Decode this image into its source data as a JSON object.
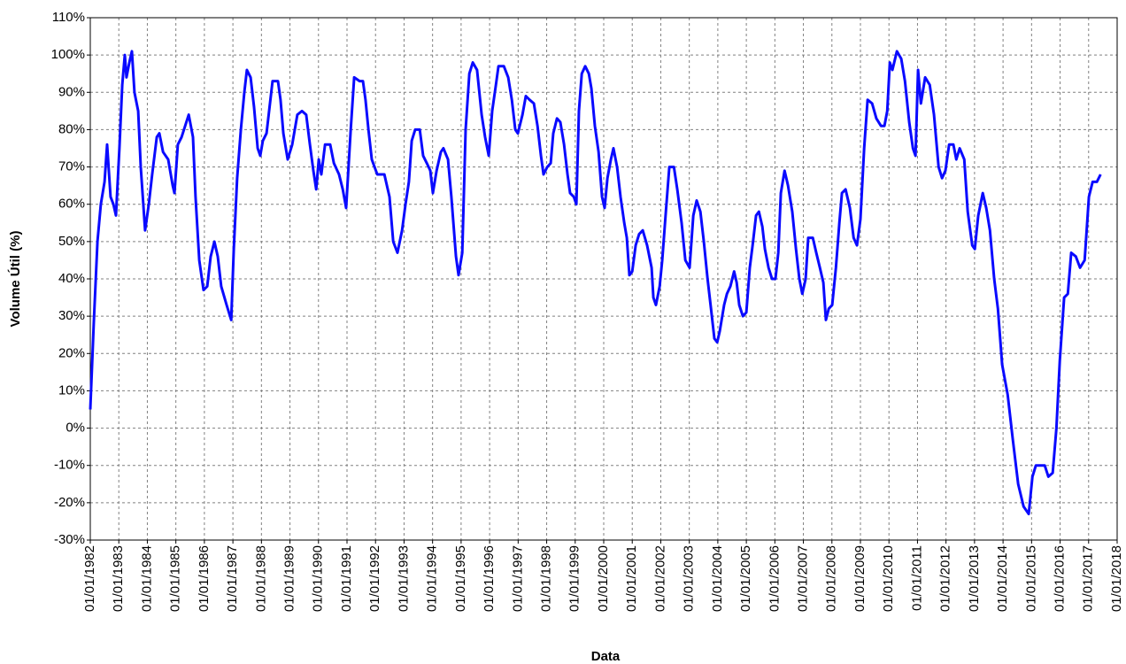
{
  "chart_data": {
    "type": "line",
    "xlabel": "Data",
    "ylabel": "Volume Útil (%)",
    "color": "#0a0aff",
    "grid": true,
    "xlim": [
      1982,
      2018
    ],
    "ylim": [
      -30,
      110
    ],
    "xticks": [
      {
        "value": 1982,
        "label": "01/01/1982"
      },
      {
        "value": 1983,
        "label": "01/01/1983"
      },
      {
        "value": 1984,
        "label": "01/01/1984"
      },
      {
        "value": 1985,
        "label": "01/01/1985"
      },
      {
        "value": 1986,
        "label": "01/01/1986"
      },
      {
        "value": 1987,
        "label": "01/01/1987"
      },
      {
        "value": 1988,
        "label": "01/01/1988"
      },
      {
        "value": 1989,
        "label": "01/01/1989"
      },
      {
        "value": 1990,
        "label": "01/01/1990"
      },
      {
        "value": 1991,
        "label": "01/01/1991"
      },
      {
        "value": 1992,
        "label": "01/01/1992"
      },
      {
        "value": 1993,
        "label": "01/01/1993"
      },
      {
        "value": 1994,
        "label": "01/01/1994"
      },
      {
        "value": 1995,
        "label": "01/01/1995"
      },
      {
        "value": 1996,
        "label": "01/01/1996"
      },
      {
        "value": 1997,
        "label": "01/01/1997"
      },
      {
        "value": 1998,
        "label": "01/01/1998"
      },
      {
        "value": 1999,
        "label": "01/01/1999"
      },
      {
        "value": 2000,
        "label": "01/01/2000"
      },
      {
        "value": 2001,
        "label": "01/01/2001"
      },
      {
        "value": 2002,
        "label": "01/01/2002"
      },
      {
        "value": 2003,
        "label": "01/01/2003"
      },
      {
        "value": 2004,
        "label": "01/01/2004"
      },
      {
        "value": 2005,
        "label": "01/01/2005"
      },
      {
        "value": 2006,
        "label": "01/01/2006"
      },
      {
        "value": 2007,
        "label": "01/01/2007"
      },
      {
        "value": 2008,
        "label": "01/01/2008"
      },
      {
        "value": 2009,
        "label": "01/01/2009"
      },
      {
        "value": 2010,
        "label": "01/01/2010"
      },
      {
        "value": 2011,
        "label": "01/01/2011"
      },
      {
        "value": 2012,
        "label": "01/01/2012"
      },
      {
        "value": 2013,
        "label": "01/01/2013"
      },
      {
        "value": 2014,
        "label": "01/01/2014"
      },
      {
        "value": 2015,
        "label": "01/01/2015"
      },
      {
        "value": 2016,
        "label": "01/01/2016"
      },
      {
        "value": 2017,
        "label": "01/01/2017"
      },
      {
        "value": 2018,
        "label": "01/01/2018"
      }
    ],
    "yticks": [
      {
        "value": -30,
        "label": "-30%"
      },
      {
        "value": -20,
        "label": "-20%"
      },
      {
        "value": -10,
        "label": "-10%"
      },
      {
        "value": 0,
        "label": "0%"
      },
      {
        "value": 10,
        "label": "10%"
      },
      {
        "value": 20,
        "label": "20%"
      },
      {
        "value": 30,
        "label": "30%"
      },
      {
        "value": 40,
        "label": "40%"
      },
      {
        "value": 50,
        "label": "50%"
      },
      {
        "value": 60,
        "label": "60%"
      },
      {
        "value": 70,
        "label": "70%"
      },
      {
        "value": 80,
        "label": "80%"
      },
      {
        "value": 90,
        "label": "90%"
      },
      {
        "value": 100,
        "label": "100%"
      },
      {
        "value": 110,
        "label": "110%"
      }
    ],
    "x": [
      1982.0,
      1982.12,
      1982.25,
      1982.37,
      1982.5,
      1982.59,
      1982.71,
      1982.81,
      1982.9,
      1983.02,
      1983.12,
      1983.21,
      1983.27,
      1983.37,
      1983.46,
      1983.55,
      1983.68,
      1983.77,
      1983.92,
      1984.05,
      1984.17,
      1984.33,
      1984.42,
      1984.55,
      1984.73,
      1984.89,
      1984.95,
      1985.07,
      1985.2,
      1985.45,
      1985.6,
      1985.69,
      1985.82,
      1985.97,
      1986.1,
      1986.22,
      1986.35,
      1986.47,
      1986.59,
      1986.78,
      1986.94,
      1987.03,
      1987.15,
      1987.28,
      1987.4,
      1987.49,
      1987.62,
      1987.74,
      1987.87,
      1987.96,
      1988.05,
      1988.18,
      1988.39,
      1988.58,
      1988.67,
      1988.77,
      1988.92,
      1989.08,
      1989.26,
      1989.42,
      1989.57,
      1989.7,
      1989.82,
      1989.92,
      1990.01,
      1990.1,
      1990.23,
      1990.41,
      1990.54,
      1990.72,
      1990.85,
      1990.97,
      1991.13,
      1991.25,
      1991.44,
      1991.56,
      1991.65,
      1991.75,
      1991.87,
      1992.06,
      1992.31,
      1992.49,
      1992.62,
      1992.77,
      1992.93,
      1993.05,
      1993.17,
      1993.27,
      1993.39,
      1993.55,
      1993.67,
      1993.8,
      1993.92,
      1994.01,
      1994.14,
      1994.29,
      1994.38,
      1994.54,
      1994.66,
      1994.82,
      1994.91,
      1995.04,
      1995.16,
      1995.29,
      1995.41,
      1995.56,
      1995.72,
      1995.84,
      1995.97,
      1996.09,
      1996.22,
      1996.31,
      1996.5,
      1996.65,
      1996.78,
      1996.9,
      1996.99,
      1997.15,
      1997.27,
      1997.4,
      1997.55,
      1997.68,
      1997.8,
      1997.89,
      1998.02,
      1998.14,
      1998.23,
      1998.36,
      1998.48,
      1998.61,
      1998.73,
      1998.82,
      1998.95,
      1999.04,
      1999.13,
      1999.23,
      1999.35,
      1999.48,
      1999.57,
      1999.69,
      1999.82,
      1999.94,
      2000.03,
      2000.13,
      2000.25,
      2000.34,
      2000.47,
      2000.59,
      2000.72,
      2000.81,
      2000.9,
      2001.0,
      2001.12,
      2001.24,
      2001.37,
      2001.52,
      2001.68,
      2001.74,
      2001.83,
      2001.96,
      2002.05,
      2002.18,
      2002.3,
      2002.46,
      2002.58,
      2002.73,
      2002.86,
      2003.01,
      2003.14,
      2003.26,
      2003.39,
      2003.51,
      2003.64,
      2003.76,
      2003.88,
      2003.98,
      2004.07,
      2004.22,
      2004.32,
      2004.44,
      2004.57,
      2004.66,
      2004.75,
      2004.88,
      2005.0,
      2005.12,
      2005.22,
      2005.34,
      2005.44,
      2005.56,
      2005.65,
      2005.78,
      2005.9,
      2006.02,
      2006.12,
      2006.21,
      2006.34,
      2006.46,
      2006.61,
      2006.74,
      2006.86,
      2006.96,
      2007.08,
      2007.17,
      2007.33,
      2007.45,
      2007.58,
      2007.7,
      2007.79,
      2007.89,
      2008.01,
      2008.14,
      2008.26,
      2008.35,
      2008.48,
      2008.63,
      2008.76,
      2008.88,
      2009.0,
      2009.13,
      2009.25,
      2009.41,
      2009.56,
      2009.72,
      2009.84,
      2009.94,
      2010.03,
      2010.12,
      2010.28,
      2010.43,
      2010.56,
      2010.71,
      2010.84,
      2010.93,
      2011.02,
      2011.12,
      2011.27,
      2011.43,
      2011.58,
      2011.74,
      2011.86,
      2011.98,
      2012.11,
      2012.26,
      2012.36,
      2012.48,
      2012.64,
      2012.76,
      2012.92,
      2013.01,
      2013.13,
      2013.29,
      2013.41,
      2013.54,
      2013.69,
      2013.82,
      2013.97,
      2014.16,
      2014.34,
      2014.53,
      2014.72,
      2014.9,
      2015.03,
      2015.15,
      2015.46,
      2015.59,
      2015.74,
      2015.87,
      2015.99,
      2016.14,
      2016.27,
      2016.39,
      2016.55,
      2016.7,
      2016.86,
      2017.01,
      2017.14,
      2017.29,
      2017.42
    ],
    "values": [
      5,
      28,
      50,
      60,
      66,
      76,
      62,
      60,
      57,
      75,
      92,
      100,
      94,
      98,
      101,
      90,
      85,
      70,
      53,
      60,
      68,
      78,
      79,
      74,
      72,
      65,
      63,
      76,
      78,
      84,
      78,
      62,
      45,
      37,
      38,
      46,
      50,
      46,
      38,
      33,
      29,
      48,
      67,
      80,
      90,
      96,
      94,
      86,
      75,
      73,
      77,
      79,
      93,
      93,
      88,
      79,
      72,
      76,
      84,
      85,
      84,
      76,
      69,
      64,
      72,
      68,
      76,
      76,
      71,
      68,
      64,
      59,
      80,
      94,
      93,
      93,
      88,
      80,
      72,
      68,
      68,
      62,
      50,
      47,
      53,
      60,
      66,
      77,
      80,
      80,
      73,
      71,
      69,
      63,
      69,
      74,
      75,
      72,
      62,
      46,
      41,
      47,
      80,
      95,
      98,
      96,
      84,
      78,
      73,
      85,
      92,
      97,
      97,
      94,
      88,
      80,
      79,
      84,
      89,
      88,
      87,
      81,
      73,
      68,
      70,
      71,
      79,
      83,
      82,
      76,
      68,
      63,
      62,
      60,
      85,
      95,
      97,
      95,
      91,
      81,
      74,
      62,
      59,
      67,
      72,
      75,
      70,
      62,
      55,
      51,
      41,
      42,
      49,
      52,
      53,
      49,
      43,
      35,
      33,
      38,
      45,
      58,
      70,
      70,
      64,
      55,
      45,
      43,
      57,
      61,
      58,
      50,
      40,
      32,
      24,
      23,
      26,
      33,
      36,
      38,
      42,
      39,
      33,
      30,
      31,
      43,
      49,
      57,
      58,
      54,
      48,
      43,
      40,
      40,
      47,
      63,
      69,
      65,
      58,
      48,
      40,
      36,
      40,
      51,
      51,
      47,
      43,
      39,
      29,
      32,
      33,
      43,
      55,
      63,
      64,
      59,
      51,
      49,
      56,
      75,
      88,
      87,
      83,
      81,
      81,
      85,
      98,
      96,
      101,
      99,
      93,
      82,
      75,
      73,
      96,
      87,
      94,
      92,
      84,
      70,
      67,
      69,
      76,
      76,
      72,
      75,
      72,
      58,
      49,
      48,
      57,
      63,
      59,
      53,
      40,
      32,
      17,
      9,
      -3,
      -15,
      -21,
      -23,
      -13,
      -10,
      -10,
      -13,
      -12,
      0,
      18,
      35,
      36,
      47,
      46,
      43,
      45,
      62,
      66,
      66,
      68
    ]
  }
}
